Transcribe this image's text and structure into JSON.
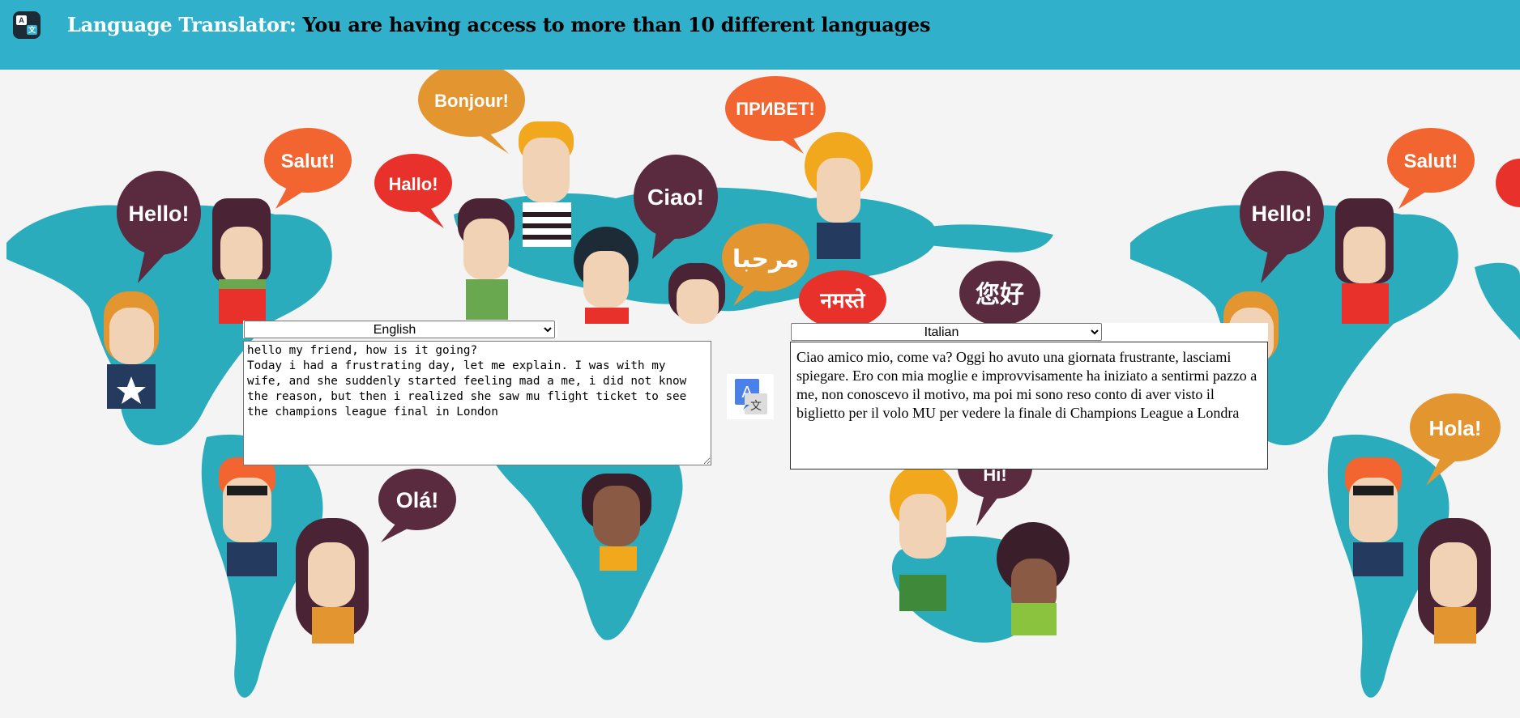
{
  "header": {
    "logo_icon": "translate-app-icon",
    "title_lead": "Language Translator:",
    "title_rest": " You are having access to more than 10 different languages"
  },
  "bubbles": {
    "hello": "Hello!",
    "salut": "Salut!",
    "hallo": "Hallo!",
    "bonjour": "Bonjour!",
    "ciao": "Ciao!",
    "privet": "ПРИВЕТ!",
    "marhaba": "مرحبا",
    "namaste": "नमस्ते",
    "nihao": "您好",
    "ola": "Olá!",
    "hola": "Hola!",
    "hi": "Hi!"
  },
  "source": {
    "language": "English",
    "text": "hello my friend, how is it going?\nToday i had a frustrating day, let me explain. I was with my wife, and she suddenly started feeling mad a me, i did not know the reason, but then i realized she saw mu flight ticket to see the champions league final in London"
  },
  "target": {
    "language": "Italian",
    "text": "Ciao amico mio, come va? Oggi ho avuto una giornata frustrante, lasciami spiegare. Ero con mia moglie e improvvisamente ha iniziato a sentirmi pazzo a me, non conoscevo il motivo, ma poi mi sono reso conto di aver visto il biglietto per il volo MU per vedere la finale di Champions League a Londra"
  },
  "translate_button": {
    "icon": "google-translate-icon"
  },
  "colors": {
    "header": "#31b0cb",
    "map": "#2aacbc",
    "background": "#f4f4f4"
  }
}
